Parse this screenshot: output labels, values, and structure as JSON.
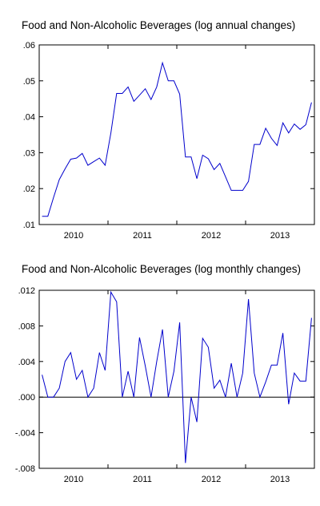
{
  "chart_data": [
    {
      "type": "line",
      "title": "Food and Non-Alcoholic Beverages (log annual changes)",
      "xlabel": "",
      "ylabel": "",
      "x_tick_labels": [
        "2010",
        "2011",
        "2012",
        "2013"
      ],
      "y_tick_labels": [
        ".01",
        ".02",
        ".03",
        ".04",
        ".05",
        ".06"
      ],
      "ylim": [
        0.01,
        0.06
      ],
      "grid": false,
      "line_color": "#0000cc",
      "x": [
        "2010-01",
        "2010-02",
        "2010-03",
        "2010-04",
        "2010-05",
        "2010-06",
        "2010-07",
        "2010-08",
        "2010-09",
        "2010-10",
        "2010-11",
        "2010-12",
        "2011-01",
        "2011-02",
        "2011-03",
        "2011-04",
        "2011-05",
        "2011-06",
        "2011-07",
        "2011-08",
        "2011-09",
        "2011-10",
        "2011-11",
        "2011-12",
        "2012-01",
        "2012-02",
        "2012-03",
        "2012-04",
        "2012-05",
        "2012-06",
        "2012-07",
        "2012-08",
        "2012-09",
        "2012-10",
        "2012-11",
        "2012-12",
        "2013-01",
        "2013-02",
        "2013-03",
        "2013-04",
        "2013-05",
        "2013-06",
        "2013-07",
        "2013-08",
        "2013-09",
        "2013-10",
        "2013-11",
        "2013-12"
      ],
      "values": [
        0.0123,
        0.0123,
        0.0175,
        0.0225,
        0.0255,
        0.0282,
        0.0285,
        0.0298,
        0.0265,
        0.0275,
        0.0285,
        0.0265,
        0.0355,
        0.0465,
        0.0465,
        0.0483,
        0.0443,
        0.046,
        0.0478,
        0.0448,
        0.0483,
        0.055,
        0.05,
        0.05,
        0.0463,
        0.0288,
        0.0288,
        0.0228,
        0.0293,
        0.0283,
        0.0253,
        0.027,
        0.0233,
        0.0195,
        0.0195,
        0.0195,
        0.022,
        0.0323,
        0.0323,
        0.0368,
        0.034,
        0.032,
        0.0383,
        0.0355,
        0.038,
        0.0365,
        0.0378,
        0.044
      ]
    },
    {
      "type": "line",
      "title": "Food and Non-Alcoholic Beverages (log monthly changes)",
      "xlabel": "",
      "ylabel": "",
      "x_tick_labels": [
        "2010",
        "2011",
        "2012",
        "2013"
      ],
      "y_tick_labels": [
        "-.008",
        "-.004",
        ".000",
        ".004",
        ".008",
        ".012"
      ],
      "ylim": [
        -0.008,
        0.012
      ],
      "grid": false,
      "zero_line": true,
      "line_color": "#0000cc",
      "x": [
        "2010-01",
        "2010-02",
        "2010-03",
        "2010-04",
        "2010-05",
        "2010-06",
        "2010-07",
        "2010-08",
        "2010-09",
        "2010-10",
        "2010-11",
        "2010-12",
        "2011-01",
        "2011-02",
        "2011-03",
        "2011-04",
        "2011-05",
        "2011-06",
        "2011-07",
        "2011-08",
        "2011-09",
        "2011-10",
        "2011-11",
        "2011-12",
        "2012-01",
        "2012-02",
        "2012-03",
        "2012-04",
        "2012-05",
        "2012-06",
        "2012-07",
        "2012-08",
        "2012-09",
        "2012-10",
        "2012-11",
        "2012-12",
        "2013-01",
        "2013-02",
        "2013-03",
        "2013-04",
        "2013-05",
        "2013-06",
        "2013-07",
        "2013-08",
        "2013-09",
        "2013-10",
        "2013-11",
        "2013-12"
      ],
      "values": [
        0.0025,
        0.0,
        0.0,
        0.001,
        0.004,
        0.005,
        0.002,
        0.003,
        0.0,
        0.001,
        0.005,
        0.003,
        0.0118,
        0.0107,
        0.0,
        0.0029,
        0.0,
        0.0067,
        0.0035,
        0.0,
        0.004,
        0.0076,
        0.0,
        0.0029,
        0.0084,
        -0.0074,
        0.0,
        -0.0028,
        0.0066,
        0.0056,
        0.001,
        0.0019,
        0.0,
        0.0038,
        0.0,
        0.0027,
        0.011,
        0.0027,
        0.0,
        0.0017,
        0.0036,
        0.0036,
        0.0072,
        -0.0008,
        0.0027,
        0.0018,
        0.0018,
        0.0089
      ]
    }
  ]
}
